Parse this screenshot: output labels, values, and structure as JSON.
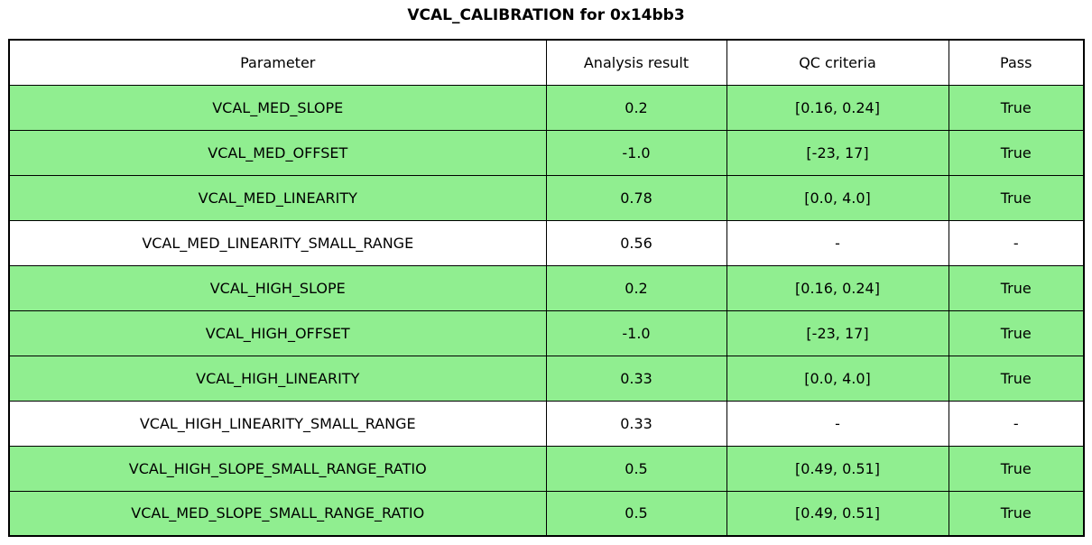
{
  "title": "VCAL_CALIBRATION for 0x14bb3",
  "colors": {
    "pass_row_bg": "#90EE90",
    "neutral_row_bg": "#FFFFFF",
    "border": "#000000",
    "text": "#000000"
  },
  "table": {
    "columns": [
      "Parameter",
      "Analysis result",
      "QC criteria",
      "Pass"
    ],
    "rows": [
      {
        "parameter": "VCAL_MED_SLOPE",
        "result": "0.2",
        "criteria": "[0.16, 0.24]",
        "pass": "True",
        "highlight": true
      },
      {
        "parameter": "VCAL_MED_OFFSET",
        "result": "-1.0",
        "criteria": "[-23, 17]",
        "pass": "True",
        "highlight": true
      },
      {
        "parameter": "VCAL_MED_LINEARITY",
        "result": "0.78",
        "criteria": "[0.0, 4.0]",
        "pass": "True",
        "highlight": true
      },
      {
        "parameter": "VCAL_MED_LINEARITY_SMALL_RANGE",
        "result": "0.56",
        "criteria": "-",
        "pass": "-",
        "highlight": false
      },
      {
        "parameter": "VCAL_HIGH_SLOPE",
        "result": "0.2",
        "criteria": "[0.16, 0.24]",
        "pass": "True",
        "highlight": true
      },
      {
        "parameter": "VCAL_HIGH_OFFSET",
        "result": "-1.0",
        "criteria": "[-23, 17]",
        "pass": "True",
        "highlight": true
      },
      {
        "parameter": "VCAL_HIGH_LINEARITY",
        "result": "0.33",
        "criteria": "[0.0, 4.0]",
        "pass": "True",
        "highlight": true
      },
      {
        "parameter": "VCAL_HIGH_LINEARITY_SMALL_RANGE",
        "result": "0.33",
        "criteria": "-",
        "pass": "-",
        "highlight": false
      },
      {
        "parameter": "VCAL_HIGH_SLOPE_SMALL_RANGE_RATIO",
        "result": "0.5",
        "criteria": "[0.49, 0.51]",
        "pass": "True",
        "highlight": true
      },
      {
        "parameter": "VCAL_MED_SLOPE_SMALL_RANGE_RATIO",
        "result": "0.5",
        "criteria": "[0.49, 0.51]",
        "pass": "True",
        "highlight": true
      }
    ]
  },
  "chart_data": {
    "type": "table",
    "title": "VCAL_CALIBRATION for 0x14bb3",
    "columns": [
      "Parameter",
      "Analysis result",
      "QC criteria",
      "Pass"
    ],
    "rows": [
      [
        "VCAL_MED_SLOPE",
        "0.2",
        "[0.16, 0.24]",
        "True"
      ],
      [
        "VCAL_MED_OFFSET",
        "-1.0",
        "[-23, 17]",
        "True"
      ],
      [
        "VCAL_MED_LINEARITY",
        "0.78",
        "[0.0, 4.0]",
        "True"
      ],
      [
        "VCAL_MED_LINEARITY_SMALL_RANGE",
        "0.56",
        "-",
        "-"
      ],
      [
        "VCAL_HIGH_SLOPE",
        "0.2",
        "[0.16, 0.24]",
        "True"
      ],
      [
        "VCAL_HIGH_OFFSET",
        "-1.0",
        "[-23, 17]",
        "True"
      ],
      [
        "VCAL_HIGH_LINEARITY",
        "0.33",
        "[0.0, 4.0]",
        "True"
      ],
      [
        "VCAL_HIGH_LINEARITY_SMALL_RANGE",
        "0.33",
        "-",
        "-"
      ],
      [
        "VCAL_HIGH_SLOPE_SMALL_RANGE_RATIO",
        "0.5",
        "[0.49, 0.51]",
        "True"
      ],
      [
        "VCAL_MED_SLOPE_SMALL_RANGE_RATIO",
        "0.5",
        "[0.49, 0.51]",
        "True"
      ]
    ],
    "row_highlighted": [
      true,
      true,
      true,
      false,
      true,
      true,
      true,
      false,
      true,
      true
    ],
    "layout": {
      "grid": true,
      "cell_text_align": "center",
      "highlight_color": "#90EE90"
    }
  }
}
